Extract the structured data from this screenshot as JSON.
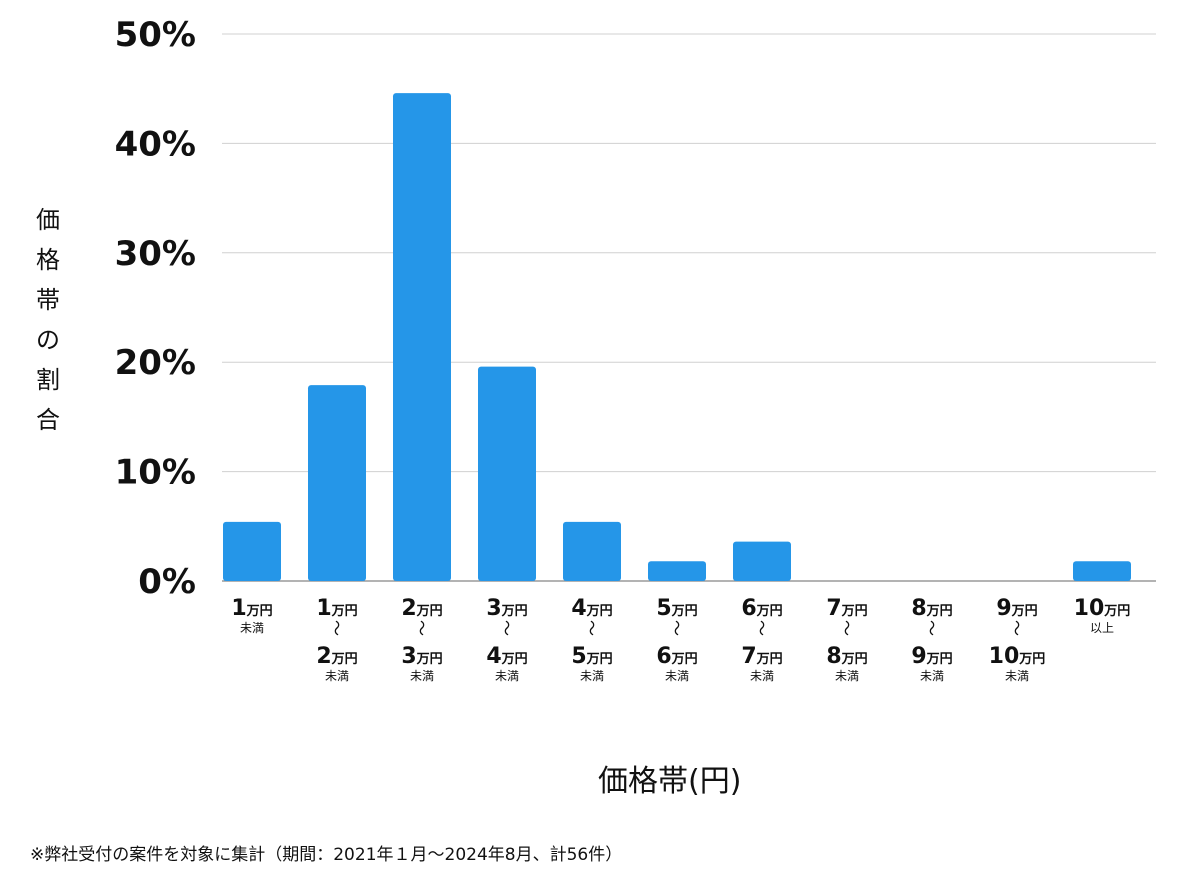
{
  "chart_data": {
    "type": "bar",
    "categories": [
      {
        "lines": [
          {
            "num": "1",
            "unit": "万円"
          },
          {
            "small": "未満"
          }
        ]
      },
      {
        "lines": [
          {
            "num": "1",
            "unit": "万円"
          },
          {
            "tilde": "〜"
          },
          {
            "num": "2",
            "unit": "万円"
          },
          {
            "small": "未満"
          }
        ]
      },
      {
        "lines": [
          {
            "num": "2",
            "unit": "万円"
          },
          {
            "tilde": "〜"
          },
          {
            "num": "3",
            "unit": "万円"
          },
          {
            "small": "未満"
          }
        ]
      },
      {
        "lines": [
          {
            "num": "3",
            "unit": "万円"
          },
          {
            "tilde": "〜"
          },
          {
            "num": "4",
            "unit": "万円"
          },
          {
            "small": "未満"
          }
        ]
      },
      {
        "lines": [
          {
            "num": "4",
            "unit": "万円"
          },
          {
            "tilde": "〜"
          },
          {
            "num": "5",
            "unit": "万円"
          },
          {
            "small": "未満"
          }
        ]
      },
      {
        "lines": [
          {
            "num": "5",
            "unit": "万円"
          },
          {
            "tilde": "〜"
          },
          {
            "num": "6",
            "unit": "万円"
          },
          {
            "small": "未満"
          }
        ]
      },
      {
        "lines": [
          {
            "num": "6",
            "unit": "万円"
          },
          {
            "tilde": "〜"
          },
          {
            "num": "7",
            "unit": "万円"
          },
          {
            "small": "未満"
          }
        ]
      },
      {
        "lines": [
          {
            "num": "7",
            "unit": "万円"
          },
          {
            "tilde": "〜"
          },
          {
            "num": "8",
            "unit": "万円"
          },
          {
            "small": "未満"
          }
        ]
      },
      {
        "lines": [
          {
            "num": "8",
            "unit": "万円"
          },
          {
            "tilde": "〜"
          },
          {
            "num": "9",
            "unit": "万円"
          },
          {
            "small": "未満"
          }
        ]
      },
      {
        "lines": [
          {
            "num": "9",
            "unit": "万円"
          },
          {
            "tilde": "〜"
          },
          {
            "num": "10",
            "unit": "万円"
          },
          {
            "small": "未満"
          }
        ]
      },
      {
        "lines": [
          {
            "num": "10",
            "unit": "万円"
          },
          {
            "small": "以上"
          }
        ]
      }
    ],
    "values": [
      5.4,
      17.9,
      44.6,
      19.6,
      5.4,
      1.8,
      3.6,
      0,
      0,
      0,
      1.8
    ],
    "ylim": [
      0,
      50
    ],
    "yticks": [
      0,
      10,
      20,
      30,
      40,
      50
    ],
    "ytick_labels": [
      "0%",
      "10%",
      "20%",
      "30%",
      "40%",
      "50%"
    ],
    "ylabel": "価格帯の割合",
    "xlabel": "価格帯(円)",
    "grid": true,
    "bar_color": "#2596e8",
    "grid_color": "#d0d0d0"
  },
  "footnote": "※弊社受付の案件を対象に集計（期間：2021年１月〜2024年8月、計56件）"
}
